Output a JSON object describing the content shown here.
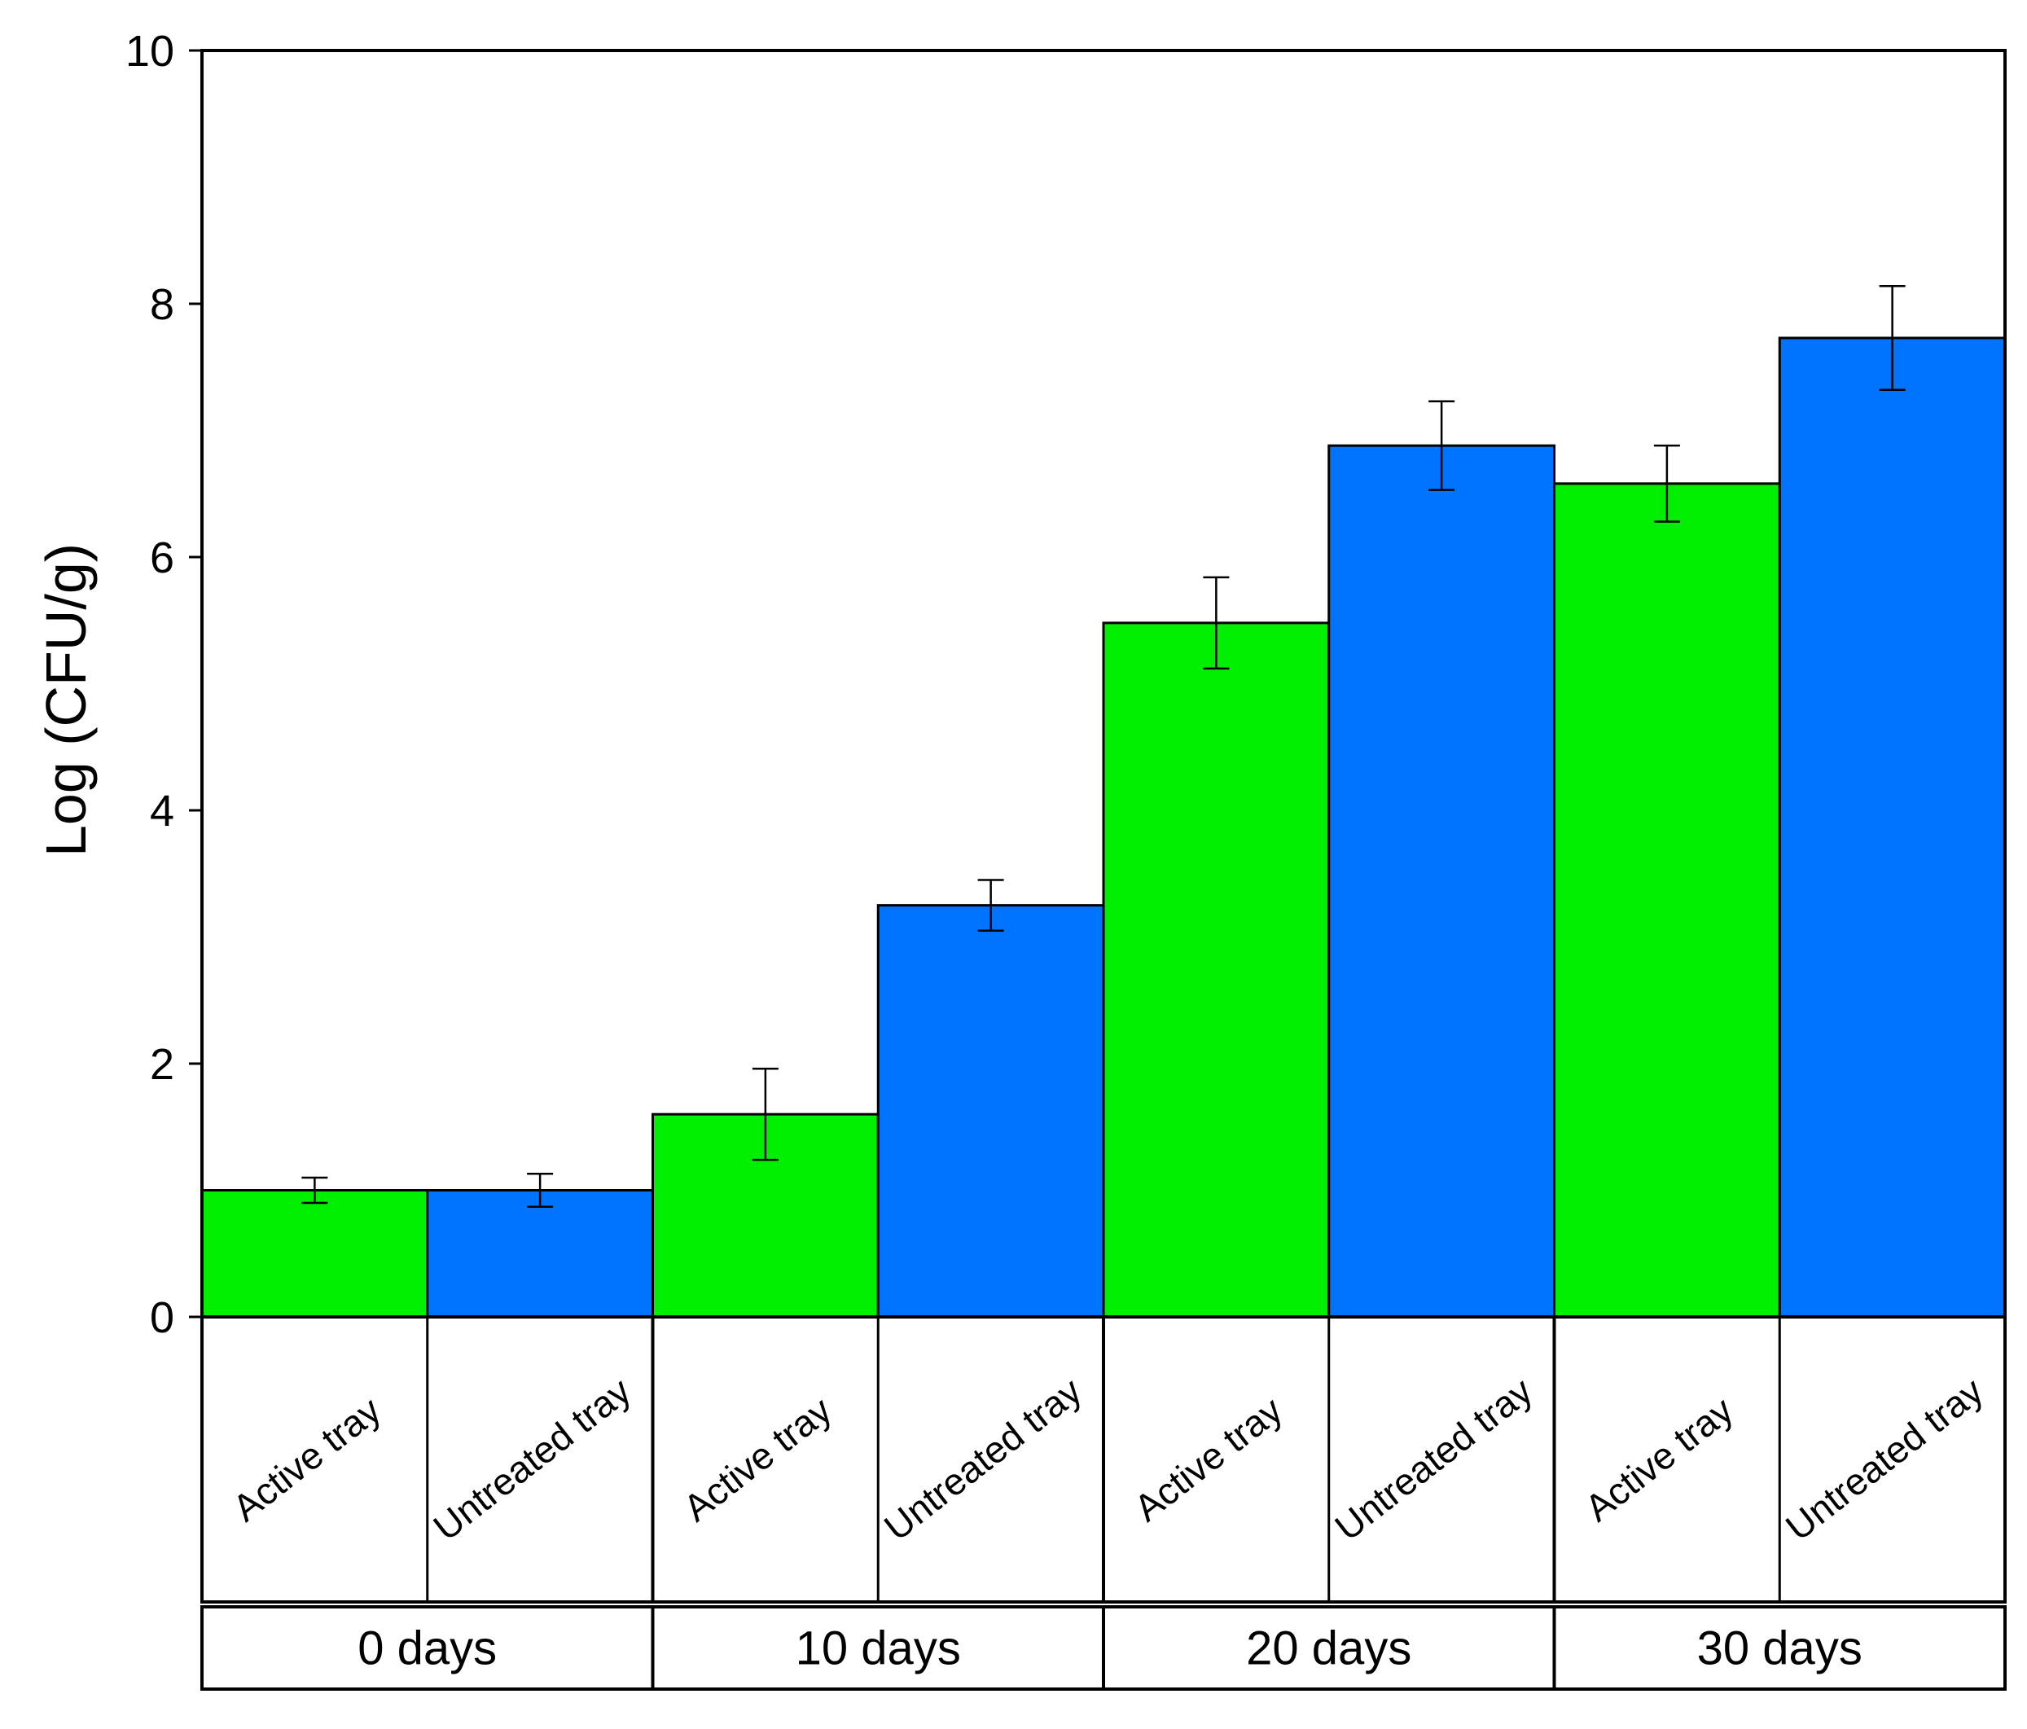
{
  "chart_data": {
    "type": "bar",
    "ylabel": "Log (CFU/g)",
    "ylim": [
      0,
      10
    ],
    "yticks": [
      "0",
      "2",
      "4",
      "6",
      "8",
      "10"
    ],
    "grid": false,
    "legend": "none",
    "groups": [
      "0 days",
      "10 days",
      "20 days",
      "30 days"
    ],
    "bars": [
      {
        "group": "0 days",
        "category": "Active tray",
        "value": 1.0,
        "error": 0.1,
        "color": "#00ee00"
      },
      {
        "group": "0 days",
        "category": "Untreated tray",
        "value": 1.0,
        "error": 0.13,
        "color": "#0073ff"
      },
      {
        "group": "10 days",
        "category": "Active tray",
        "value": 1.6,
        "error": 0.36,
        "color": "#00ee00"
      },
      {
        "group": "10 days",
        "category": "Untreated tray",
        "value": 3.25,
        "error": 0.2,
        "color": "#0073ff"
      },
      {
        "group": "20 days",
        "category": "Active tray",
        "value": 5.48,
        "error": 0.36,
        "color": "#00ee00"
      },
      {
        "group": "20 days",
        "category": "Untreated tray",
        "value": 6.88,
        "error": 0.35,
        "color": "#0073ff"
      },
      {
        "group": "30 days",
        "category": "Active tray",
        "value": 6.58,
        "error": 0.3,
        "color": "#00ee00"
      },
      {
        "group": "30 days",
        "category": "Untreated tray",
        "value": 7.73,
        "error": 0.41,
        "color": "#0073ff"
      }
    ]
  }
}
